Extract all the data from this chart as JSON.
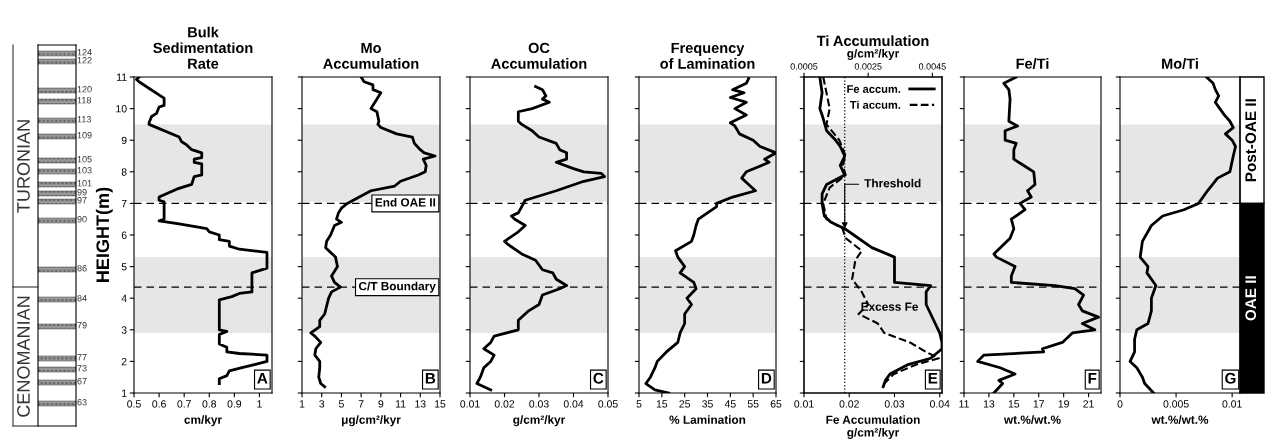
{
  "chart_data": [
    {
      "type": "other",
      "annotations": [
        "TURONIAN",
        "CENOMANIAN",
        "124",
        "122",
        "120",
        "118",
        "113",
        "109",
        "105",
        "103",
        "101",
        "99",
        "97",
        "90",
        "86",
        "84",
        "79",
        "77",
        "73",
        "67",
        "63"
      ]
    },
    {
      "type": "line",
      "title": "Bulk\nSedimentation\nRate",
      "xlabel": "cm/kyr",
      "ylabel": "HEIGHT(m)",
      "xlim": [
        0.5,
        1.05
      ],
      "xticks": [
        0.5,
        0.6,
        0.7,
        0.8,
        0.9,
        1
      ],
      "ylim": [
        1,
        11
      ],
      "yticks": [
        1,
        2,
        3,
        4,
        5,
        6,
        7,
        8,
        9,
        10,
        11
      ],
      "series": [
        {
          "color": "#000000",
          "line_style": "solid",
          "x": [
            0.52,
            0.51,
            0.52,
            0.61,
            0.62,
            0.62,
            0.6,
            0.59,
            0.57,
            0.56,
            0.56,
            0.68,
            0.69,
            0.71,
            0.73,
            0.77,
            0.77,
            0.74,
            0.74,
            0.77,
            0.77,
            0.74,
            0.73,
            0.67,
            0.6,
            0.6,
            0.62,
            0.62,
            0.6,
            0.68,
            0.79,
            0.8,
            0.84,
            0.84,
            0.88,
            0.88,
            0.92,
            1.03,
            1.03,
            0.97,
            0.97,
            0.92,
            0.89,
            0.84,
            0.84,
            0.87,
            0.84,
            0.84,
            0.87,
            0.87,
            0.92,
            1.03,
            1.03,
            0.98,
            0.93,
            0.88,
            0.87,
            0.84,
            0.84
          ],
          "values": [
            11.0,
            10.92,
            10.85,
            10.38,
            10.33,
            10.1,
            10.05,
            9.85,
            9.75,
            9.55,
            9.5,
            9.1,
            8.95,
            8.85,
            8.7,
            8.6,
            8.45,
            8.4,
            8.3,
            8.25,
            7.9,
            7.85,
            7.6,
            7.45,
            7.2,
            7.1,
            7.05,
            6.5,
            6.45,
            6.35,
            6.2,
            6.1,
            6.0,
            5.85,
            5.8,
            5.65,
            5.55,
            5.45,
            4.95,
            4.8,
            4.2,
            4.15,
            4.05,
            3.95,
            3.0,
            2.95,
            2.85,
            2.55,
            2.45,
            2.3,
            2.25,
            2.2,
            2.0,
            1.9,
            1.8,
            1.7,
            1.55,
            1.45,
            1.3
          ]
        }
      ],
      "bands": [
        {
          "axis": "y",
          "from": 2.9,
          "to": 5.3,
          "color": "#e6e6e6"
        },
        {
          "axis": "y",
          "from": 7.05,
          "to": 9.5,
          "color": "#e6e6e6"
        }
      ],
      "ref_lines": [
        {
          "axis": "y",
          "value": 7.0,
          "line_style": "dashed",
          "color": "#000000"
        },
        {
          "axis": "y",
          "value": 4.35,
          "line_style": "dashed",
          "color": "#000000"
        }
      ],
      "annotations": [
        "A"
      ]
    },
    {
      "type": "line",
      "title": "Mo\nAccumulation",
      "xlabel": "μg/cm²/kyr",
      "tick_labels": "x",
      "xlim": [
        1,
        15
      ],
      "xticks": [
        1,
        3,
        5,
        7,
        9,
        11,
        13,
        15
      ],
      "ylim": [
        1,
        11
      ],
      "yticks": [
        1,
        2,
        3,
        4,
        5,
        6,
        7,
        8,
        9,
        10,
        11
      ],
      "series": [
        {
          "color": "#000000",
          "line_style": "solid",
          "x": [
            7.0,
            7.3,
            8.2,
            8.2,
            9.0,
            8.0,
            8.6,
            8.8,
            8.7,
            9.0,
            10.6,
            12.2,
            12.4,
            13.0,
            13.4,
            14.5,
            13.3,
            13.6,
            13.5,
            12.8,
            11.0,
            10.4,
            8.0,
            6.2,
            5.6,
            5.0,
            4.7,
            4.5,
            5.0,
            4.3,
            3.9,
            3.5,
            3.4,
            4.4,
            4.6,
            4.0,
            4.3,
            4.9,
            4.0,
            3.7,
            3.3,
            2.8,
            2.8,
            1.9,
            2.3,
            2.9,
            2.4,
            2.3,
            2.8,
            2.8,
            2.7,
            2.9,
            3.3
          ],
          "values": [
            11.0,
            10.85,
            10.75,
            10.6,
            10.5,
            10.0,
            9.9,
            9.6,
            9.5,
            9.4,
            9.2,
            9.1,
            8.9,
            8.7,
            8.6,
            8.5,
            8.4,
            8.2,
            8.0,
            7.9,
            7.7,
            7.55,
            7.4,
            7.1,
            7.0,
            6.85,
            6.7,
            6.5,
            6.4,
            6.3,
            6.0,
            5.8,
            5.6,
            5.3,
            5.0,
            4.7,
            4.5,
            4.35,
            4.2,
            4.0,
            3.5,
            3.3,
            3.1,
            2.9,
            2.8,
            2.6,
            2.4,
            2.2,
            2.0,
            1.8,
            1.5,
            1.3,
            1.2
          ]
        }
      ],
      "bands": [
        {
          "axis": "y",
          "from": 2.9,
          "to": 5.3,
          "color": "#e6e6e6"
        },
        {
          "axis": "y",
          "from": 7.05,
          "to": 9.5,
          "color": "#e6e6e6"
        }
      ],
      "ref_lines": [
        {
          "axis": "y",
          "value": 7.0,
          "line_style": "dashed",
          "color": "#000000",
          "label": "End OAE II"
        },
        {
          "axis": "y",
          "value": 4.35,
          "line_style": "dashed",
          "color": "#000000",
          "label": "C/T Boundary"
        }
      ],
      "annotations": [
        "B"
      ]
    },
    {
      "type": "line",
      "title": "OC\nAccumulation",
      "xlabel": "g/cm²/kyr",
      "tick_labels": "x",
      "xlim": [
        0.01,
        0.05
      ],
      "xticks": [
        0.01,
        0.02,
        0.03,
        0.04,
        0.05
      ],
      "ylim": [
        1,
        11
      ],
      "yticks": [
        1,
        2,
        3,
        4,
        5,
        6,
        7,
        8,
        9,
        10,
        11
      ],
      "series": [
        {
          "color": "#000000",
          "line_style": "solid",
          "x": [
            0.029,
            0.031,
            0.032,
            0.031,
            0.033,
            0.028,
            0.024,
            0.024,
            0.025,
            0.028,
            0.03,
            0.035,
            0.036,
            0.038,
            0.038,
            0.035,
            0.04,
            0.043,
            0.048,
            0.049,
            0.043,
            0.035,
            0.026,
            0.025,
            0.024,
            0.022,
            0.023,
            0.026,
            0.024,
            0.02,
            0.021,
            0.025,
            0.029,
            0.031,
            0.034,
            0.035,
            0.038,
            0.036,
            0.031,
            0.03,
            0.027,
            0.024,
            0.024,
            0.017,
            0.016,
            0.014,
            0.017,
            0.016,
            0.014,
            0.013,
            0.012,
            0.016
          ],
          "values": [
            10.7,
            10.6,
            10.4,
            10.3,
            10.2,
            10.0,
            9.9,
            9.6,
            9.5,
            9.3,
            9.1,
            8.9,
            8.7,
            8.6,
            8.4,
            8.3,
            8.1,
            8.0,
            7.95,
            7.85,
            7.7,
            7.4,
            7.1,
            6.9,
            6.7,
            6.6,
            6.5,
            6.3,
            6.1,
            5.8,
            5.7,
            5.4,
            5.2,
            4.9,
            4.8,
            4.6,
            4.4,
            4.3,
            4.1,
            3.8,
            3.6,
            3.3,
            3.0,
            2.8,
            2.6,
            2.4,
            2.2,
            2.0,
            1.8,
            1.5,
            1.3,
            1.1
          ]
        }
      ],
      "bands": [
        {
          "axis": "y",
          "from": 2.9,
          "to": 5.3,
          "color": "#e6e6e6"
        },
        {
          "axis": "y",
          "from": 7.05,
          "to": 9.5,
          "color": "#e6e6e6"
        }
      ],
      "ref_lines": [
        {
          "axis": "y",
          "value": 7.0,
          "line_style": "dashed",
          "color": "#000000"
        },
        {
          "axis": "y",
          "value": 4.35,
          "line_style": "dashed",
          "color": "#000000"
        }
      ],
      "annotations": [
        "C"
      ]
    },
    {
      "type": "line",
      "title": "Frequency\nof Lamination",
      "xlabel": "% Lamination",
      "tick_labels": "x",
      "xlim": [
        5,
        65
      ],
      "xticks": [
        5,
        15,
        25,
        35,
        45,
        55,
        65
      ],
      "ylim": [
        1,
        11
      ],
      "yticks": [
        1,
        2,
        3,
        4,
        5,
        6,
        7,
        8,
        9,
        10,
        11
      ],
      "series": [
        {
          "color": "#000000",
          "line_style": "solid",
          "x": [
            53,
            52,
            46,
            51,
            45,
            52,
            47,
            52,
            45,
            47,
            49,
            55,
            58,
            65,
            60,
            62,
            52,
            50,
            53,
            56,
            46,
            39,
            39,
            31,
            30,
            29,
            28,
            21,
            22,
            25,
            23,
            29,
            30,
            26,
            28,
            25,
            25,
            23,
            22,
            17,
            13,
            12,
            10,
            8,
            12,
            18
          ],
          "values": [
            10.95,
            10.8,
            10.6,
            10.5,
            10.35,
            10.2,
            10.0,
            9.8,
            9.55,
            9.45,
            9.2,
            9.0,
            8.8,
            8.6,
            8.4,
            8.3,
            8.0,
            7.8,
            7.6,
            7.4,
            7.2,
            7.0,
            6.9,
            6.5,
            6.3,
            6.0,
            5.8,
            5.5,
            5.3,
            5.0,
            4.8,
            4.5,
            4.3,
            4.0,
            3.8,
            3.5,
            3.2,
            2.9,
            2.6,
            2.3,
            2.0,
            1.8,
            1.5,
            1.3,
            1.1,
            1.0
          ]
        }
      ],
      "bands": [
        {
          "axis": "y",
          "from": 2.9,
          "to": 5.3,
          "color": "#e6e6e6"
        },
        {
          "axis": "y",
          "from": 7.05,
          "to": 9.5,
          "color": "#e6e6e6"
        }
      ],
      "ref_lines": [
        {
          "axis": "y",
          "value": 7.0,
          "line_style": "dashed",
          "color": "#000000"
        },
        {
          "axis": "y",
          "value": 4.35,
          "line_style": "dashed",
          "color": "#000000"
        }
      ],
      "annotations": [
        "D"
      ]
    },
    {
      "type": "line",
      "title": "Ti Accumulation",
      "x2label": "g/cm²/kyr",
      "xlabel": "Fe Accumulation\ng/cm²/kyr",
      "tick_labels": "x",
      "legend": "top right",
      "xlim": [
        0.01,
        0.0405
      ],
      "xticks": [
        0.01,
        0.02,
        0.03,
        0.04
      ],
      "x2lim": [
        0.0005,
        0.0048
      ],
      "x2ticks": [
        0.0005,
        0.0025,
        0.0045
      ],
      "ylim": [
        1,
        11
      ],
      "yticks": [
        1,
        2,
        3,
        4,
        5,
        6,
        7,
        8,
        9,
        10,
        11
      ],
      "series": [
        {
          "name": "Fe accum.",
          "color": "#000000",
          "line_style": "solid",
          "x": [
            0.0135,
            0.014,
            0.0135,
            0.014,
            0.015,
            0.017,
            0.018,
            0.019,
            0.018,
            0.019,
            0.015,
            0.014,
            0.014,
            0.0145,
            0.016,
            0.019,
            0.021,
            0.025,
            0.03,
            0.03,
            0.03,
            0.038,
            0.037,
            0.037,
            0.039,
            0.04,
            0.0405,
            0.0405,
            0.038,
            0.033,
            0.029,
            0.028,
            0.0275
          ],
          "values": [
            11.0,
            10.5,
            10.0,
            9.8,
            9.3,
            9.0,
            8.8,
            8.5,
            8.2,
            7.9,
            7.6,
            7.3,
            7.0,
            6.6,
            6.4,
            6.2,
            6.0,
            5.6,
            5.3,
            5.0,
            4.5,
            4.4,
            4.2,
            3.8,
            3.2,
            2.9,
            2.6,
            2.4,
            2.1,
            1.9,
            1.6,
            1.4,
            1.2
          ]
        },
        {
          "name": "Ti accum.",
          "color": "#000000",
          "line_style": "dashed",
          "axis": "x2",
          "x": [
            0.0011,
            0.0012,
            0.0013,
            0.0012,
            0.0016,
            0.0018,
            0.0017,
            0.0018,
            0.0013,
            0.0011,
            0.0012,
            0.0017,
            0.0018,
            0.0023,
            0.0021,
            0.002,
            0.0023,
            0.0025,
            0.0022,
            0.0028,
            0.003,
            0.0038,
            0.0043,
            0.0047,
            0.004,
            0.0033,
            0.003,
            0.0029
          ],
          "values": [
            11.0,
            10.5,
            10.0,
            9.5,
            9.0,
            8.5,
            8.2,
            7.9,
            7.5,
            7.0,
            6.5,
            6.2,
            5.9,
            5.5,
            5.2,
            4.6,
            4.2,
            3.8,
            3.5,
            3.2,
            2.9,
            2.6,
            2.3,
            2.1,
            1.9,
            1.6,
            1.3,
            1.2
          ]
        }
      ],
      "bands": [
        {
          "axis": "y",
          "from": 2.9,
          "to": 5.3,
          "color": "#e6e6e6"
        },
        {
          "axis": "y",
          "from": 7.05,
          "to": 9.5,
          "color": "#e6e6e6"
        }
      ],
      "ref_lines": [
        {
          "axis": "y",
          "value": 7.0,
          "line_style": "dashed",
          "color": "#000000"
        },
        {
          "axis": "y",
          "value": 4.35,
          "line_style": "dashed",
          "color": "#000000"
        },
        {
          "axis": "x",
          "value": 0.019,
          "line_style": "dotted",
          "color": "#000000"
        }
      ],
      "annotations": [
        "E",
        {
          "text": "Threshold",
          "x": 0.019,
          "y": 6.2
        },
        "Excess Fe"
      ]
    },
    {
      "type": "line",
      "title": "Fe/Ti",
      "xlabel": "wt.%/wt.%",
      "tick_labels": "x",
      "xlim": [
        11,
        22
      ],
      "xticks": [
        11,
        13,
        15,
        17,
        19,
        21
      ],
      "ylim": [
        1,
        11
      ],
      "yticks": [
        1,
        2,
        3,
        4,
        5,
        6,
        7,
        8,
        9,
        10,
        11
      ],
      "series": [
        {
          "color": "#000000",
          "line_style": "solid",
          "x": [
            15.2,
            14.2,
            14.6,
            14.7,
            14.6,
            15.3,
            14.3,
            14.3,
            15.2,
            15.0,
            15.0,
            15.8,
            16.6,
            16.7,
            16.1,
            16.4,
            15.5,
            15.9,
            14.8,
            15.0,
            14.7,
            13.4,
            13.6,
            15.1,
            14.8,
            14.8,
            18.3,
            19.9,
            20.6,
            20.2,
            20.5,
            21.8,
            20.5,
            21.5,
            19.7,
            18.9,
            17.3,
            17.4,
            12.6,
            12.1,
            13.9,
            15.1,
            13.8,
            14.1,
            13.4
          ],
          "values": [
            11.0,
            10.8,
            10.6,
            10.3,
            9.6,
            9.45,
            9.3,
            9.0,
            8.9,
            8.7,
            8.4,
            8.2,
            8.0,
            7.6,
            7.4,
            7.2,
            7.0,
            6.8,
            6.5,
            6.2,
            5.9,
            5.4,
            5.3,
            5.0,
            4.7,
            4.5,
            4.4,
            4.3,
            4.1,
            3.8,
            3.6,
            3.4,
            3.2,
            3.0,
            2.9,
            2.6,
            2.4,
            2.3,
            2.2,
            2.0,
            1.8,
            1.6,
            1.4,
            1.3,
            1.0
          ]
        }
      ],
      "bands": [
        {
          "axis": "y",
          "from": 2.9,
          "to": 5.3,
          "color": "#e6e6e6"
        },
        {
          "axis": "y",
          "from": 7.05,
          "to": 9.5,
          "color": "#e6e6e6"
        }
      ],
      "ref_lines": [
        {
          "axis": "y",
          "value": 7.0,
          "line_style": "dashed",
          "color": "#000000"
        },
        {
          "axis": "y",
          "value": 4.35,
          "line_style": "dashed",
          "color": "#000000"
        }
      ],
      "annotations": [
        "F"
      ]
    },
    {
      "type": "line",
      "title": "Mo/Ti",
      "xlabel": "wt.%/wt.%",
      "tick_labels": "x",
      "xlim": [
        0,
        0.0107
      ],
      "xticks": [
        0,
        0.005,
        0.01
      ],
      "ylim": [
        1,
        11
      ],
      "yticks": [
        1,
        2,
        3,
        4,
        5,
        6,
        7,
        8,
        9,
        10,
        11
      ],
      "series": [
        {
          "color": "#000000",
          "line_style": "solid",
          "x": [
            0.0077,
            0.0083,
            0.0085,
            0.0088,
            0.0085,
            0.0089,
            0.0093,
            0.0098,
            0.0101,
            0.0094,
            0.01,
            0.0103,
            0.0101,
            0.0098,
            0.0087,
            0.0078,
            0.007,
            0.0057,
            0.0038,
            0.0028,
            0.002,
            0.0018,
            0.0025,
            0.0024,
            0.0032,
            0.0028,
            0.0028,
            0.0025,
            0.0015,
            0.0013,
            0.0013,
            0.0009,
            0.0015,
            0.002,
            0.0022,
            0.003
          ],
          "values": [
            11.0,
            10.8,
            10.6,
            10.4,
            10.2,
            10.0,
            9.8,
            9.6,
            9.4,
            9.2,
            9.0,
            8.8,
            8.5,
            8.0,
            7.8,
            7.4,
            7.0,
            6.8,
            6.6,
            6.3,
            5.8,
            5.3,
            5.0,
            4.8,
            4.4,
            4.0,
            3.6,
            3.2,
            3.0,
            2.7,
            2.3,
            2.0,
            1.8,
            1.5,
            1.3,
            1.0
          ]
        }
      ],
      "bands": [
        {
          "axis": "y",
          "from": 2.9,
          "to": 5.3,
          "color": "#e6e6e6"
        },
        {
          "axis": "y",
          "from": 7.05,
          "to": 9.5,
          "color": "#e6e6e6"
        }
      ],
      "ref_lines": [
        {
          "axis": "y",
          "value": 7.0,
          "line_style": "dashed",
          "color": "#000000"
        },
        {
          "axis": "y",
          "value": 4.35,
          "line_style": "dashed",
          "color": "#000000"
        }
      ],
      "annotations": [
        "G",
        "Post-OAE II",
        "OAE II"
      ]
    }
  ]
}
